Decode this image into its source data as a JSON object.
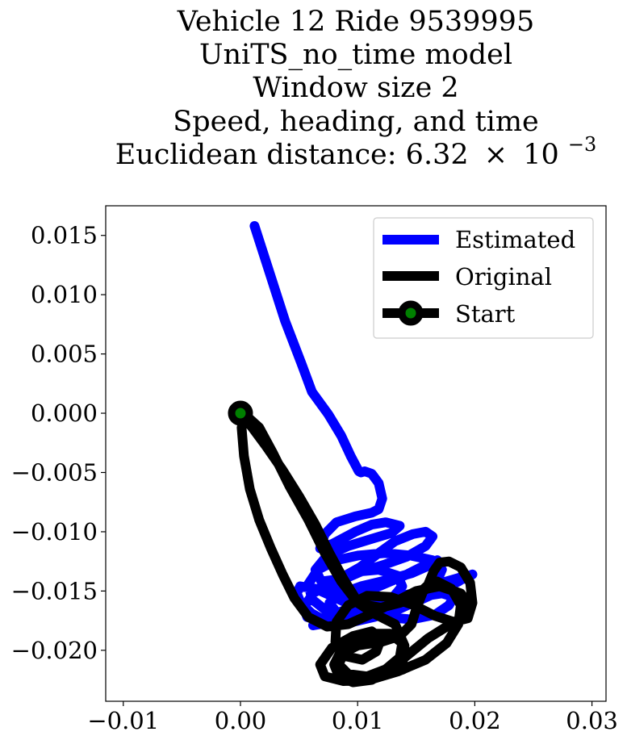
{
  "chart_data": {
    "type": "line",
    "title_lines": [
      "Vehicle 12 Ride 9539995",
      "UniTS_no_time model",
      "Window size 2",
      "Speed, heading, and time"
    ],
    "title_metric_label": "Euclidean distance: 6.32",
    "title_metric_times": "×",
    "title_metric_base": "10",
    "title_metric_exponent": "−3",
    "xlabel": "",
    "ylabel": "",
    "xlim": [
      -0.0115,
      0.0312
    ],
    "ylim": [
      -0.0243,
      0.0175
    ],
    "xticks": [
      -0.01,
      0.0,
      0.01,
      0.02,
      0.03
    ],
    "xtick_labels": [
      "−0.01",
      "0.00",
      "0.01",
      "0.02",
      "0.03"
    ],
    "yticks": [
      0.015,
      0.01,
      0.005,
      0.0,
      -0.005,
      -0.01,
      -0.015,
      -0.02
    ],
    "ytick_labels": [
      "0.015",
      "0.010",
      "0.005",
      "0.000",
      "−0.005",
      "−0.010",
      "−0.015",
      "−0.020"
    ],
    "grid": false,
    "legend_position": "top-right",
    "legend": [
      "Estimated",
      "Original",
      "Start"
    ],
    "colors": {
      "estimated": "#0000ff",
      "original": "#000000",
      "start_marker_edge": "#000000",
      "start_marker_face": "#008000"
    },
    "start": {
      "x": 0.0,
      "y": 0.0
    },
    "series": [
      {
        "name": "Estimated",
        "x": [
          0.0012,
          0.0025,
          0.0038,
          0.0052,
          0.0061,
          0.0075,
          0.0086,
          0.0094,
          0.0101,
          0.0103,
          0.0106,
          0.0112,
          0.0118,
          0.0121,
          0.0118,
          0.0112,
          0.0098,
          0.0082,
          0.0072,
          0.0068,
          0.0079,
          0.0098,
          0.0112,
          0.0124,
          0.0136,
          0.0129,
          0.0112,
          0.0092,
          0.0074,
          0.0064,
          0.0069,
          0.0084,
          0.0102,
          0.0118,
          0.0132,
          0.0147,
          0.0158,
          0.0164,
          0.0158,
          0.0142,
          0.0122,
          0.0102,
          0.0088,
          0.0079,
          0.0088,
          0.0104,
          0.0123,
          0.0142,
          0.0158,
          0.0168,
          0.0162,
          0.0146,
          0.0124,
          0.0103,
          0.0086,
          0.0076,
          0.0082,
          0.0098,
          0.0118,
          0.0138,
          0.0156,
          0.0168,
          0.0172,
          0.0164,
          0.0145,
          0.0123,
          0.0101,
          0.0082,
          0.0066,
          0.0058,
          0.0061,
          0.0075,
          0.0094,
          0.0112,
          0.0128,
          0.0138,
          0.0134,
          0.0118,
          0.0096,
          0.0078,
          0.0062,
          0.0054,
          0.0057,
          0.0072,
          0.0092,
          0.0114,
          0.0136,
          0.0156,
          0.0172,
          0.0186,
          0.0194,
          0.0186,
          0.0168,
          0.0148,
          0.0126,
          0.0104,
          0.0086,
          0.0072,
          0.0061,
          0.0052,
          0.0048,
          0.0051,
          0.0064,
          0.0082,
          0.0103,
          0.0124,
          0.0146,
          0.0166,
          0.0178,
          0.0182,
          0.0172,
          0.0152,
          0.0128,
          0.0104,
          0.0083,
          0.0068,
          0.0062,
          0.0068,
          0.0084,
          0.0104,
          0.0126,
          0.0148,
          0.0168,
          0.0184,
          0.0195,
          0.0198,
          0.0192,
          0.0178,
          0.0158,
          0.0136,
          0.0114,
          0.0096,
          0.0086,
          0.0083
        ],
        "y": [
          0.0158,
          0.0118,
          0.0078,
          0.0042,
          0.0018,
          -0.0001,
          -0.0019,
          -0.0036,
          -0.0049,
          -0.005,
          -0.0049,
          -0.0051,
          -0.0059,
          -0.0072,
          -0.0081,
          -0.0084,
          -0.0087,
          -0.0092,
          -0.0102,
          -0.0114,
          -0.011,
          -0.01,
          -0.0094,
          -0.0092,
          -0.0095,
          -0.0101,
          -0.0106,
          -0.0112,
          -0.012,
          -0.0132,
          -0.0142,
          -0.014,
          -0.013,
          -0.0118,
          -0.0108,
          -0.0102,
          -0.01,
          -0.0104,
          -0.0112,
          -0.0121,
          -0.0128,
          -0.0134,
          -0.014,
          -0.0149,
          -0.0156,
          -0.0152,
          -0.0144,
          -0.0136,
          -0.0128,
          -0.0124,
          -0.0128,
          -0.0135,
          -0.0141,
          -0.0146,
          -0.0152,
          -0.016,
          -0.0168,
          -0.0171,
          -0.0168,
          -0.016,
          -0.015,
          -0.0141,
          -0.0132,
          -0.0124,
          -0.012,
          -0.0118,
          -0.012,
          -0.0124,
          -0.0132,
          -0.0144,
          -0.0157,
          -0.0168,
          -0.0172,
          -0.0168,
          -0.0158,
          -0.0146,
          -0.0137,
          -0.0132,
          -0.0134,
          -0.0142,
          -0.0152,
          -0.0164,
          -0.0172,
          -0.0176,
          -0.0172,
          -0.0164,
          -0.0156,
          -0.0149,
          -0.0143,
          -0.0139,
          -0.0137,
          -0.0142,
          -0.0151,
          -0.016,
          -0.0167,
          -0.0173,
          -0.0176,
          -0.0175,
          -0.0169,
          -0.0161,
          -0.0152,
          -0.0146,
          -0.0148,
          -0.0156,
          -0.0166,
          -0.0172,
          -0.0174,
          -0.017,
          -0.0162,
          -0.0155,
          -0.0152,
          -0.0155,
          -0.0161,
          -0.0168,
          -0.0174,
          -0.0178,
          -0.0179,
          -0.0175,
          -0.0168,
          -0.0161,
          -0.0156,
          -0.0152,
          -0.0147,
          -0.0142,
          -0.0138,
          -0.0136,
          -0.0138,
          -0.0145,
          -0.0155,
          -0.0165,
          -0.0172,
          -0.0176,
          -0.0177,
          -0.0176
        ]
      },
      {
        "name": "Original",
        "x": [
          0.0,
          0.001,
          0.0022,
          0.0036,
          0.005,
          0.0064,
          0.0076,
          0.0088,
          0.0098,
          0.0108,
          0.012,
          0.0136,
          0.015,
          0.016,
          0.0165,
          0.017,
          0.0178,
          0.0188,
          0.0196,
          0.0198,
          0.0194,
          0.0182,
          0.0166,
          0.0148,
          0.0128,
          0.0108,
          0.0092,
          0.0082,
          0.0081,
          0.009,
          0.0104,
          0.0116,
          0.012,
          0.0112,
          0.0096,
          0.0078,
          0.0068,
          0.0072,
          0.0088,
          0.011,
          0.0134,
          0.0158,
          0.0176,
          0.0186,
          0.0188,
          0.018,
          0.0168,
          0.0156,
          0.015,
          0.0146,
          0.0136,
          0.012,
          0.01,
          0.0088,
          0.0084,
          0.0092,
          0.0108,
          0.0124,
          0.0136,
          0.0138,
          0.0128,
          0.0114,
          0.0098,
          0.0086,
          0.008,
          0.0084,
          0.0096,
          0.0112,
          0.0128,
          0.0144,
          0.016,
          0.0176,
          0.019,
          0.0196,
          0.0188,
          0.017,
          0.015,
          0.013,
          0.011,
          0.0092,
          0.0074,
          0.0058,
          0.0046,
          0.0036,
          0.0026,
          0.0016,
          0.0008,
          0.0003,
          0.0001,
          0.0006,
          0.0016,
          0.0028,
          0.0042,
          0.0058,
          0.0072,
          0.0086,
          0.01,
          0.0116,
          0.0132,
          0.014,
          0.0138
        ],
        "y": [
          0.0,
          -0.0012,
          -0.0028,
          -0.0048,
          -0.007,
          -0.0094,
          -0.0118,
          -0.014,
          -0.0156,
          -0.0162,
          -0.0164,
          -0.016,
          -0.0154,
          -0.0145,
          -0.0133,
          -0.0126,
          -0.0125,
          -0.013,
          -0.0143,
          -0.016,
          -0.0173,
          -0.0176,
          -0.0171,
          -0.0162,
          -0.0155,
          -0.0154,
          -0.0162,
          -0.0176,
          -0.0193,
          -0.0205,
          -0.0208,
          -0.0201,
          -0.019,
          -0.0184,
          -0.0188,
          -0.0198,
          -0.0212,
          -0.0222,
          -0.0226,
          -0.0225,
          -0.0218,
          -0.0208,
          -0.0194,
          -0.0178,
          -0.0162,
          -0.0148,
          -0.0142,
          -0.015,
          -0.0165,
          -0.0178,
          -0.0188,
          -0.0193,
          -0.0196,
          -0.0202,
          -0.0212,
          -0.022,
          -0.0222,
          -0.0216,
          -0.0206,
          -0.0194,
          -0.0186,
          -0.0186,
          -0.0191,
          -0.02,
          -0.0212,
          -0.0222,
          -0.0227,
          -0.0225,
          -0.0216,
          -0.0203,
          -0.019,
          -0.018,
          -0.0172,
          -0.0162,
          -0.0152,
          -0.0146,
          -0.015,
          -0.016,
          -0.017,
          -0.0178,
          -0.018,
          -0.0172,
          -0.0156,
          -0.0136,
          -0.0114,
          -0.009,
          -0.0064,
          -0.0036,
          -0.0012,
          -0.0003,
          -0.0012,
          -0.0034,
          -0.0062,
          -0.009,
          -0.0118,
          -0.0142,
          -0.016,
          -0.017,
          -0.0178,
          -0.0196,
          -0.0215
        ]
      }
    ]
  }
}
